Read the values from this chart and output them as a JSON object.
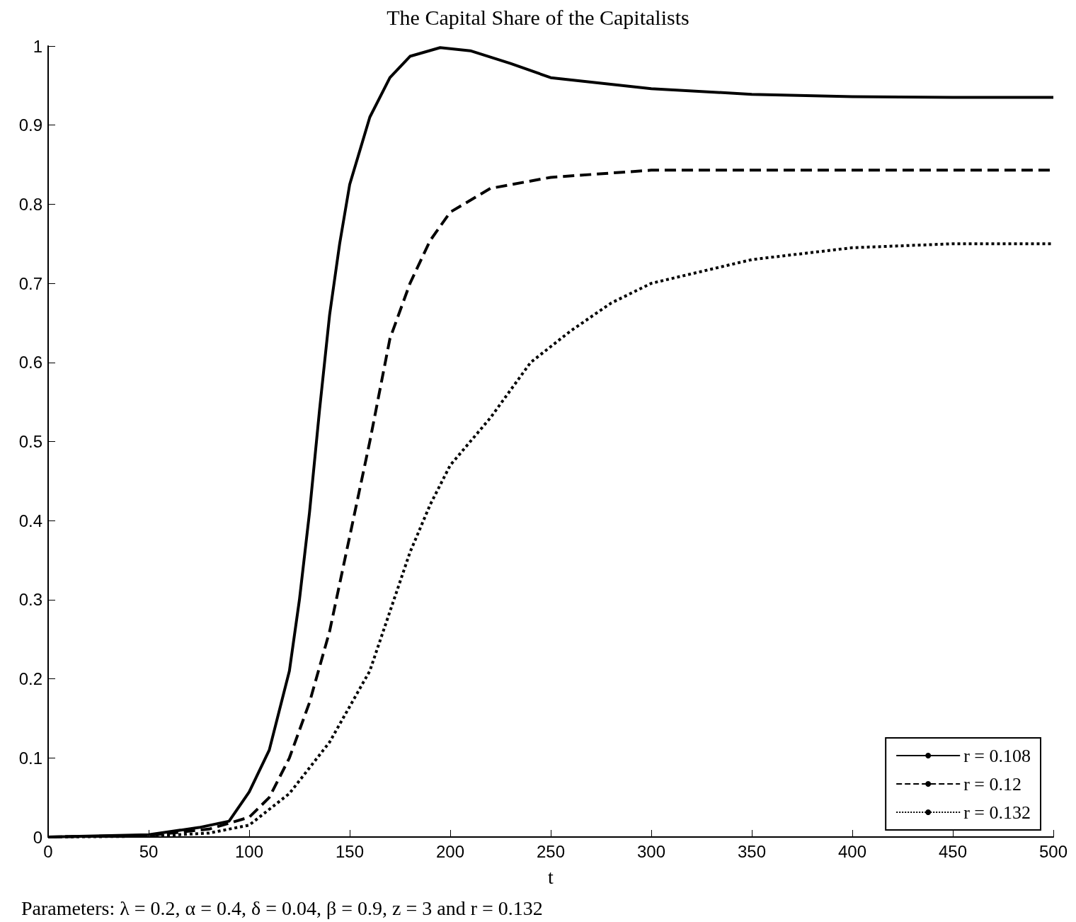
{
  "chart_data": {
    "type": "line",
    "title": "The Capital Share of the Capitalists",
    "xlabel": "t",
    "annotations": [
      "Parameters: λ = 0.2, α = 0.4, δ = 0.04, β = 0.9, z = 3 and r = 0.132"
    ],
    "xlim": [
      0,
      500
    ],
    "xticks": [
      0,
      50,
      100,
      150,
      200,
      250,
      300,
      350,
      400,
      450,
      500
    ],
    "ylim": [
      0,
      1
    ],
    "yticks": [
      0,
      0.1,
      0.2,
      0.3,
      0.4,
      0.5,
      0.6,
      0.7,
      0.8,
      0.9,
      1
    ],
    "grid": false,
    "legend": "bottom right",
    "marker": "none",
    "series": [
      {
        "name": "r = 0.108",
        "color": "#000000",
        "line_style": "solid",
        "x": [
          0,
          50,
          75,
          90,
          100,
          110,
          120,
          125,
          130,
          135,
          140,
          145,
          150,
          160,
          170,
          180,
          195,
          210,
          230,
          250,
          300,
          350,
          400,
          450,
          500
        ],
        "values": [
          0,
          0.003,
          0.012,
          0.02,
          0.057,
          0.11,
          0.21,
          0.3,
          0.41,
          0.54,
          0.66,
          0.75,
          0.825,
          0.91,
          0.96,
          0.987,
          0.998,
          0.994,
          0.978,
          0.96,
          0.946,
          0.939,
          0.936,
          0.935,
          0.935
        ]
      },
      {
        "name": "r = 0.12",
        "color": "#000000",
        "line_style": "dashed",
        "x": [
          0,
          50,
          80,
          100,
          110,
          120,
          130,
          140,
          150,
          160,
          170,
          180,
          190,
          200,
          220,
          250,
          300,
          350,
          400,
          450,
          500
        ],
        "values": [
          0,
          0.002,
          0.01,
          0.025,
          0.05,
          0.1,
          0.17,
          0.26,
          0.38,
          0.5,
          0.63,
          0.7,
          0.754,
          0.79,
          0.82,
          0.834,
          0.843,
          0.843,
          0.843,
          0.843,
          0.843
        ]
      },
      {
        "name": "r = 0.132",
        "color": "#000000",
        "line_style": "dotted",
        "x": [
          0,
          50,
          80,
          100,
          120,
          140,
          160,
          180,
          190,
          200,
          220,
          240,
          260,
          280,
          300,
          350,
          400,
          450,
          500
        ],
        "values": [
          0,
          0.001,
          0.005,
          0.015,
          0.055,
          0.12,
          0.21,
          0.36,
          0.42,
          0.47,
          0.53,
          0.6,
          0.64,
          0.675,
          0.7,
          0.73,
          0.745,
          0.75,
          0.75
        ]
      }
    ]
  }
}
